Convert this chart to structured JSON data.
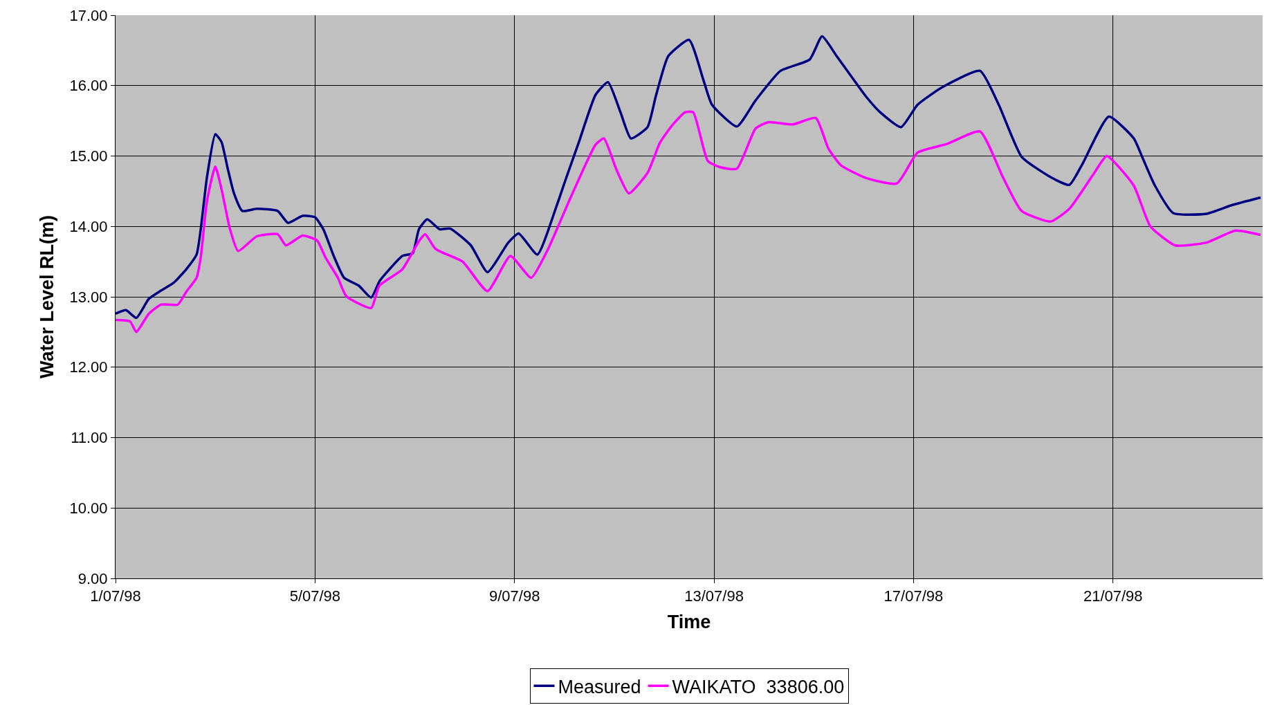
{
  "chart_data": {
    "type": "line",
    "xlabel": "Time",
    "ylabel": "Water Level RL(m)",
    "xlim": [
      "1998-07-01",
      "1998-07-24"
    ],
    "xticks": [
      {
        "value": "1998-07-01",
        "label": "1/07/98"
      },
      {
        "value": "1998-07-05",
        "label": "5/07/98"
      },
      {
        "value": "1998-07-09",
        "label": "9/07/98"
      },
      {
        "value": "1998-07-13",
        "label": "13/07/98"
      },
      {
        "value": "1998-07-17",
        "label": "17/07/98"
      },
      {
        "value": "1998-07-21",
        "label": "21/07/98"
      }
    ],
    "ylim": [
      9,
      17
    ],
    "yticks": [
      {
        "value": 9,
        "label": "9.00"
      },
      {
        "value": 10,
        "label": "10.00"
      },
      {
        "value": 11,
        "label": "11.00"
      },
      {
        "value": 12,
        "label": "12.00"
      },
      {
        "value": 13,
        "label": "13.00"
      },
      {
        "value": 14,
        "label": "14.00"
      },
      {
        "value": 15,
        "label": "15.00"
      },
      {
        "value": 16,
        "label": "16.00"
      },
      {
        "value": 17,
        "label": "17.00"
      }
    ],
    "grid": true,
    "legend": "bottom",
    "marker": "none",
    "line_style": "solid",
    "series": [
      {
        "name": "Measured",
        "color": "#000080",
        "x": [
          "1998-07-01T00:00",
          "1998-07-01T05:00",
          "1998-07-01T10:00",
          "1998-07-01T16:00",
          "1998-07-01T22:00",
          "1998-07-02T04:00",
          "1998-07-02T10:00",
          "1998-07-02T15:00",
          "1998-07-02T17:00",
          "1998-07-02T20:00",
          "1998-07-03T00:00",
          "1998-07-03T03:00",
          "1998-07-03T06:00",
          "1998-07-03T09:00",
          "1998-07-03T13:00",
          "1998-07-03T20:00",
          "1998-07-04T06:00",
          "1998-07-04T11:00",
          "1998-07-04T18:00",
          "1998-07-05T00:00",
          "1998-07-05T04:00",
          "1998-07-05T09:00",
          "1998-07-05T14:00",
          "1998-07-05T21:00",
          "1998-07-06T03:00",
          "1998-07-06T07:00",
          "1998-07-06T10:00",
          "1998-07-06T18:00",
          "1998-07-06T23:00",
          "1998-07-07T02:00",
          "1998-07-07T06:00",
          "1998-07-07T12:00",
          "1998-07-07T17:00",
          "1998-07-08T03:00",
          "1998-07-08T11:00",
          "1998-07-08T21:00",
          "1998-07-09T02:00",
          "1998-07-09T11:00",
          "1998-07-09T20:00",
          "1998-07-10T01:00",
          "1998-07-10T07:00",
          "1998-07-10T15:00",
          "1998-07-10T21:00",
          "1998-07-11T03:00",
          "1998-07-11T08:00",
          "1998-07-11T16:00",
          "1998-07-11T20:00",
          "1998-07-12T02:00",
          "1998-07-12T12:00",
          "1998-07-12T19:00",
          "1998-07-12T23:00",
          "1998-07-13T11:00",
          "1998-07-13T20:00",
          "1998-07-14T08:00",
          "1998-07-14T22:00",
          "1998-07-15T04:00",
          "1998-07-15T11:00",
          "1998-07-16T01:00",
          "1998-07-16T08:00",
          "1998-07-16T18:00",
          "1998-07-17T02:00",
          "1998-07-17T14:00",
          "1998-07-18T08:00",
          "1998-07-18T17:00",
          "1998-07-19T04:00",
          "1998-07-19T18:00",
          "1998-07-20T03:00",
          "1998-07-20T09:00",
          "1998-07-20T22:00",
          "1998-07-21T10:00",
          "1998-07-21T14:00",
          "1998-07-21T20:00",
          "1998-07-22T05:00",
          "1998-07-22T21:00",
          "1998-07-23T09:00",
          "1998-07-23T23:00"
        ],
        "values": [
          12.76,
          12.81,
          12.7,
          12.97,
          13.09,
          13.2,
          13.39,
          13.6,
          13.96,
          14.7,
          15.31,
          15.2,
          14.82,
          14.47,
          14.22,
          14.25,
          14.22,
          14.05,
          14.15,
          14.13,
          13.96,
          13.58,
          13.27,
          13.16,
          12.99,
          13.22,
          13.33,
          13.58,
          13.62,
          13.96,
          14.1,
          13.96,
          13.97,
          13.73,
          13.35,
          13.77,
          13.9,
          13.6,
          14.27,
          14.7,
          15.2,
          15.87,
          16.05,
          15.62,
          15.25,
          15.41,
          15.85,
          16.42,
          16.65,
          16.07,
          15.73,
          15.42,
          15.79,
          16.21,
          16.37,
          16.7,
          16.42,
          15.85,
          15.62,
          15.41,
          15.73,
          15.98,
          16.21,
          15.73,
          14.99,
          14.7,
          14.59,
          14.87,
          15.56,
          15.25,
          14.99,
          14.59,
          14.19,
          14.18,
          14.3,
          14.41
        ]
      },
      {
        "name": "WAIKATO  33806.00",
        "color": "#ff00ff",
        "x": [
          "1998-07-01T00:00",
          "1998-07-01T07:00",
          "1998-07-01T10:00",
          "1998-07-01T16:00",
          "1998-07-01T22:00",
          "1998-07-02T06:00",
          "1998-07-02T10:00",
          "1998-07-02T15:00",
          "1998-07-02T17:00",
          "1998-07-02T20:00",
          "1998-07-03T00:00",
          "1998-07-03T03:00",
          "1998-07-03T07:00",
          "1998-07-03T11:00",
          "1998-07-03T20:00",
          "1998-07-04T06:00",
          "1998-07-04T10:00",
          "1998-07-04T18:00",
          "1998-07-05T01:00",
          "1998-07-05T05:00",
          "1998-07-05T11:00",
          "1998-07-05T15:00",
          "1998-07-06T03:00",
          "1998-07-06T07:00",
          "1998-07-06T18:00",
          "1998-07-07T02:00",
          "1998-07-07T05:00",
          "1998-07-07T10:00",
          "1998-07-07T23:00",
          "1998-07-08T11:00",
          "1998-07-08T22:00",
          "1998-07-09T08:00",
          "1998-07-09T16:00",
          "1998-07-09T22:00",
          "1998-07-10T03:00",
          "1998-07-10T15:00",
          "1998-07-10T19:00",
          "1998-07-11T01:00",
          "1998-07-11T07:00",
          "1998-07-11T16:00",
          "1998-07-11T22:00",
          "1998-07-12T04:00",
          "1998-07-12T10:00",
          "1998-07-12T14:00",
          "1998-07-12T21:00",
          "1998-07-13T03:00",
          "1998-07-13T11:00",
          "1998-07-13T20:00",
          "1998-07-14T02:00",
          "1998-07-14T14:00",
          "1998-07-15T01:00",
          "1998-07-15T07:00",
          "1998-07-15T13:00",
          "1998-07-16T01:00",
          "1998-07-16T16:00",
          "1998-07-17T02:00",
          "1998-07-17T16:00",
          "1998-07-18T08:00",
          "1998-07-18T19:00",
          "1998-07-19T04:00",
          "1998-07-19T18:00",
          "1998-07-20T03:00",
          "1998-07-20T15:00",
          "1998-07-20T21:00",
          "1998-07-21T10:00",
          "1998-07-21T18:00",
          "1998-07-22T06:00",
          "1998-07-22T21:00",
          "1998-07-23T11:00",
          "1998-07-23T23:00"
        ],
        "values": [
          12.67,
          12.65,
          12.5,
          12.76,
          12.89,
          12.89,
          13.07,
          13.27,
          13.56,
          14.36,
          14.85,
          14.53,
          13.97,
          13.65,
          13.86,
          13.89,
          13.73,
          13.87,
          13.8,
          13.56,
          13.27,
          13.01,
          12.84,
          13.16,
          13.39,
          13.79,
          13.89,
          13.68,
          13.5,
          13.08,
          13.58,
          13.27,
          13.67,
          14.07,
          14.41,
          15.16,
          15.25,
          14.81,
          14.47,
          14.76,
          15.19,
          15.44,
          15.62,
          15.62,
          14.93,
          14.84,
          14.82,
          15.39,
          15.48,
          15.45,
          15.54,
          15.11,
          14.87,
          14.69,
          14.61,
          15.05,
          15.17,
          15.35,
          14.7,
          14.22,
          14.07,
          14.25,
          14.76,
          15.0,
          14.58,
          14.0,
          13.73,
          13.77,
          13.94,
          13.88
        ]
      }
    ]
  }
}
